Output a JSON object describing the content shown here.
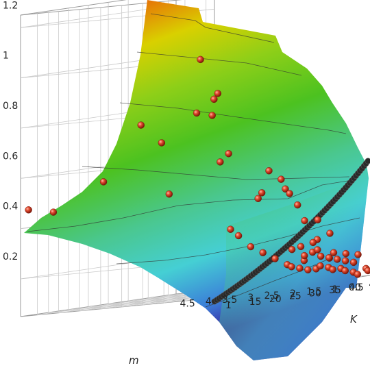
{
  "chart_data": {
    "type": "surface3d",
    "title": "",
    "axes": {
      "z": {
        "label": "",
        "range": [
          0.05,
          1.25
        ],
        "ticks": [
          "0.2",
          "0.4",
          "0.6",
          "0.8",
          "1",
          "1.2"
        ]
      },
      "m": {
        "label": "m",
        "range": [
          0.3,
          4.9
        ],
        "ticks": [
          "4.5",
          "4",
          "3.5",
          "3",
          "2.5",
          "2",
          "1.5",
          "1",
          "0.5"
        ]
      },
      "K": {
        "label": "K",
        "range": [
          8,
          47
        ],
        "ticks": [
          "1",
          "15",
          "20",
          "25",
          "30",
          "35",
          "40",
          "45"
        ]
      }
    },
    "grid": true,
    "colormap": [
      "#3b1fa0",
      "#3a7fd8",
      "#4fd0d8",
      "#4cc98a",
      "#4cc220",
      "#a6d31a",
      "#f0d000",
      "#f07a00",
      "#c81a10"
    ],
    "surface": {
      "description_levels": [
        0.2,
        0.4,
        0.6,
        0.8,
        1.0,
        1.2
      ]
    },
    "curve": {
      "color": "#2a2a2a",
      "points": [
        [
          0.5,
          45,
          0.12
        ],
        [
          0.5,
          38,
          0.2
        ],
        [
          0.5,
          30,
          0.32
        ],
        [
          0.5,
          22,
          0.48
        ],
        [
          0.5,
          15,
          0.62
        ],
        [
          0.5,
          10,
          0.72
        ]
      ]
    },
    "points": [
      [
        4.9,
        10,
        0.47
      ],
      [
        4.5,
        12,
        0.45
      ],
      [
        3.5,
        14,
        0.55
      ],
      [
        2.8,
        16,
        0.76
      ],
      [
        2.5,
        18,
        0.68
      ],
      [
        2.7,
        22,
        0.47
      ],
      [
        1.3,
        18,
        0.77
      ],
      [
        1.2,
        14,
        1.0
      ],
      [
        1.1,
        12,
        0.79
      ],
      [
        1.3,
        20,
        0.58
      ],
      [
        1.1,
        20,
        0.61
      ],
      [
        0.5,
        10,
        0.84
      ],
      [
        0.6,
        12,
        0.86
      ],
      [
        0.9,
        28,
        0.52
      ],
      [
        0.8,
        30,
        0.48
      ],
      [
        0.7,
        30,
        0.44
      ],
      [
        0.6,
        30,
        0.42
      ],
      [
        0.6,
        32,
        0.37
      ],
      [
        0.5,
        22,
        0.44
      ],
      [
        0.4,
        20,
        0.42
      ],
      [
        1.0,
        38,
        0.3
      ],
      [
        0.5,
        36,
        0.3
      ],
      [
        0.7,
        38,
        0.22
      ],
      [
        0.6,
        40,
        0.14
      ],
      [
        2.0,
        30,
        0.3
      ],
      [
        2.0,
        32,
        0.27
      ],
      [
        1.9,
        34,
        0.22
      ],
      [
        1.8,
        36,
        0.19
      ],
      [
        1.7,
        38,
        0.16
      ],
      [
        1.6,
        40,
        0.13
      ],
      [
        1.5,
        40,
        0.12
      ],
      [
        1.4,
        41,
        0.11
      ],
      [
        1.3,
        42,
        0.1
      ],
      [
        1.2,
        43,
        0.1
      ],
      [
        1.1,
        43,
        0.11
      ],
      [
        1.0,
        44,
        0.1
      ],
      [
        0.9,
        44,
        0.09
      ],
      [
        0.8,
        45,
        0.09
      ],
      [
        0.7,
        45,
        0.08
      ],
      [
        0.6,
        46,
        0.07
      ],
      [
        0.5,
        46,
        0.06
      ],
      [
        1.2,
        40,
        0.14
      ],
      [
        1.1,
        39,
        0.16
      ],
      [
        1.0,
        40,
        0.17
      ],
      [
        0.9,
        41,
        0.15
      ],
      [
        0.8,
        42,
        0.14
      ],
      [
        0.7,
        43,
        0.13
      ],
      [
        0.6,
        44,
        0.12
      ],
      [
        0.5,
        45,
        0.11
      ],
      [
        0.9,
        36,
        0.2
      ],
      [
        1.3,
        38,
        0.19
      ],
      [
        0.8,
        38,
        0.21
      ],
      [
        0.6,
        37,
        0.18
      ],
      [
        0.5,
        40,
        0.16
      ],
      [
        0.4,
        42,
        0.15
      ],
      [
        0.4,
        38,
        0.24
      ],
      [
        0.3,
        44,
        0.14
      ],
      [
        0.3,
        46,
        0.08
      ],
      [
        0.35,
        47,
        0.07
      ]
    ]
  }
}
